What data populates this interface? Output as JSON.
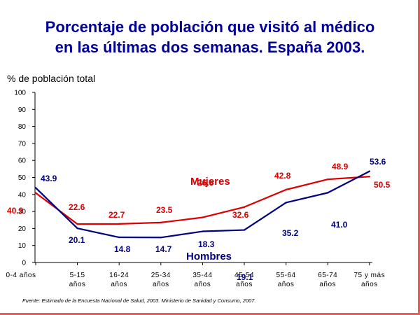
{
  "chart_data": {
    "type": "line",
    "title": "Porcentaje de población que visitó al médico en las últimas dos semanas. España 2003.",
    "title_lines": [
      "Porcentaje de población que visitó al médico",
      "en las últimas dos semanas. España 2003."
    ],
    "ylabel": "% de población total",
    "ylim": [
      0,
      100
    ],
    "yticks": [
      "0",
      "10",
      "20",
      "30",
      "40",
      "50",
      "60",
      "70",
      "80",
      "90",
      "100"
    ],
    "categories": [
      [
        "0-4 años"
      ],
      [
        "5-15",
        "años"
      ],
      [
        "16-24",
        "años"
      ],
      [
        "25-34",
        "años"
      ],
      [
        "35-44",
        "años"
      ],
      [
        "45-54",
        "años"
      ],
      [
        "55-64",
        "años"
      ],
      [
        "65-74",
        "años"
      ],
      [
        "75 y más",
        "años"
      ]
    ],
    "series": [
      {
        "name": "Mujeres",
        "color": "#dd0000",
        "values": [
          40.9,
          22.6,
          22.7,
          23.5,
          26.5,
          32.6,
          42.8,
          48.9,
          50.5
        ],
        "labels": [
          "40.9",
          "22.6",
          "22.7",
          "23.5",
          "26.5",
          "32.6",
          "42.8",
          "48.9",
          "50.5"
        ]
      },
      {
        "name": "Hombres",
        "color": "#000080",
        "values": [
          43.9,
          20.1,
          14.8,
          14.7,
          18.3,
          19.1,
          35.2,
          41.0,
          53.6
        ],
        "labels": [
          "43.9",
          "20.1",
          "14.8",
          "14.7",
          "18.3",
          "19.1",
          "35.2",
          "41.0",
          "53.6"
        ]
      }
    ],
    "grid": false,
    "source": "Fuente: Estimado de la Encuesta Nacional de Salud, 2003. Ministerio de Sanidad y Consumo, 2007."
  }
}
